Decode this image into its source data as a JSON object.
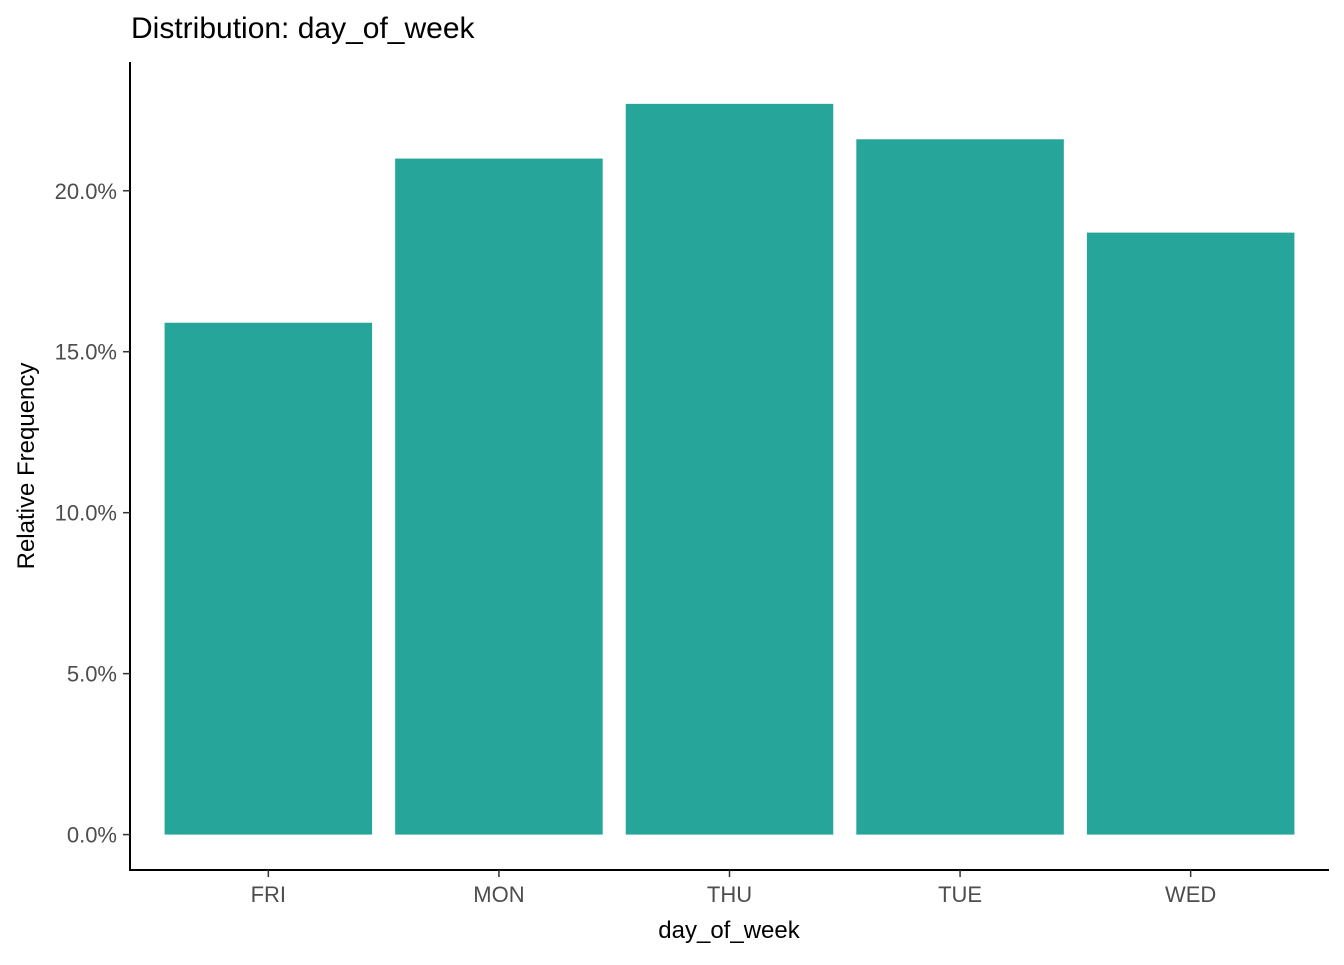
{
  "chart_data": {
    "type": "bar",
    "title": "Distribution: day_of_week",
    "xlabel": "day_of_week",
    "ylabel": "Relative Frequency",
    "categories": [
      "FRI",
      "MON",
      "THU",
      "TUE",
      "WED"
    ],
    "values": [
      15.9,
      21.0,
      22.7,
      21.6,
      18.7
    ],
    "value_unit": "%",
    "ylim": [
      -1.1,
      24.0
    ],
    "yticks": [
      0,
      5,
      10,
      15,
      20
    ],
    "ytick_labels": [
      "0.0%",
      "5.0%",
      "10.0%",
      "15.0%",
      "20.0%"
    ],
    "bar_color": "#26A69A",
    "grid": false,
    "legend": "none"
  }
}
